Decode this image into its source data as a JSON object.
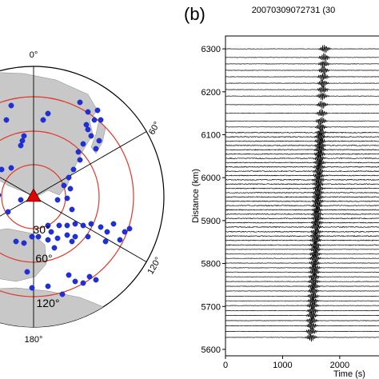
{
  "panel_b": {
    "label": "(b)",
    "event_id": "20070309072731 (30"
  },
  "map": {
    "lon_labels": [
      "0°",
      "60°",
      "120°",
      "180°"
    ],
    "ring_labels": [
      "30°",
      "60°",
      "120°"
    ],
    "colors": {
      "land": "#c8c8c8",
      "ocean": "#ffffff",
      "ring": "#e0392b",
      "station": "#1f2fe0",
      "event": "#e00000"
    }
  },
  "chart_data": {
    "type": "line",
    "title": "",
    "xlabel": "Time (s)",
    "ylabel": "Distance (km)",
    "xlim": [
      0,
      2800
    ],
    "ylim": [
      5585,
      6330
    ],
    "x_ticks": [
      "0",
      "1000",
      "2000"
    ],
    "y_ticks": [
      "5600",
      "5700",
      "5800",
      "5900",
      "6000",
      "6100",
      "6200",
      "6300"
    ],
    "grid": false,
    "series": [
      {
        "distances_km": [
          5628,
          5642,
          5655,
          5667,
          5679,
          5690,
          5702,
          5713,
          5724,
          5736,
          5747,
          5758,
          5769,
          5780,
          5790,
          5801,
          5812,
          5822,
          5833,
          5843,
          5854,
          5864,
          5874,
          5885,
          5895,
          5905,
          5915,
          5925,
          5935,
          5945,
          5955,
          5965,
          5975,
          5985,
          5995,
          6005,
          6015,
          6025,
          6035,
          6045,
          6055,
          6065,
          6075,
          6085,
          6095,
          6105,
          6118,
          6132,
          6150,
          6170,
          6190,
          6205,
          6220,
          6235,
          6250,
          6265,
          6280,
          6300
        ]
      }
    ]
  }
}
